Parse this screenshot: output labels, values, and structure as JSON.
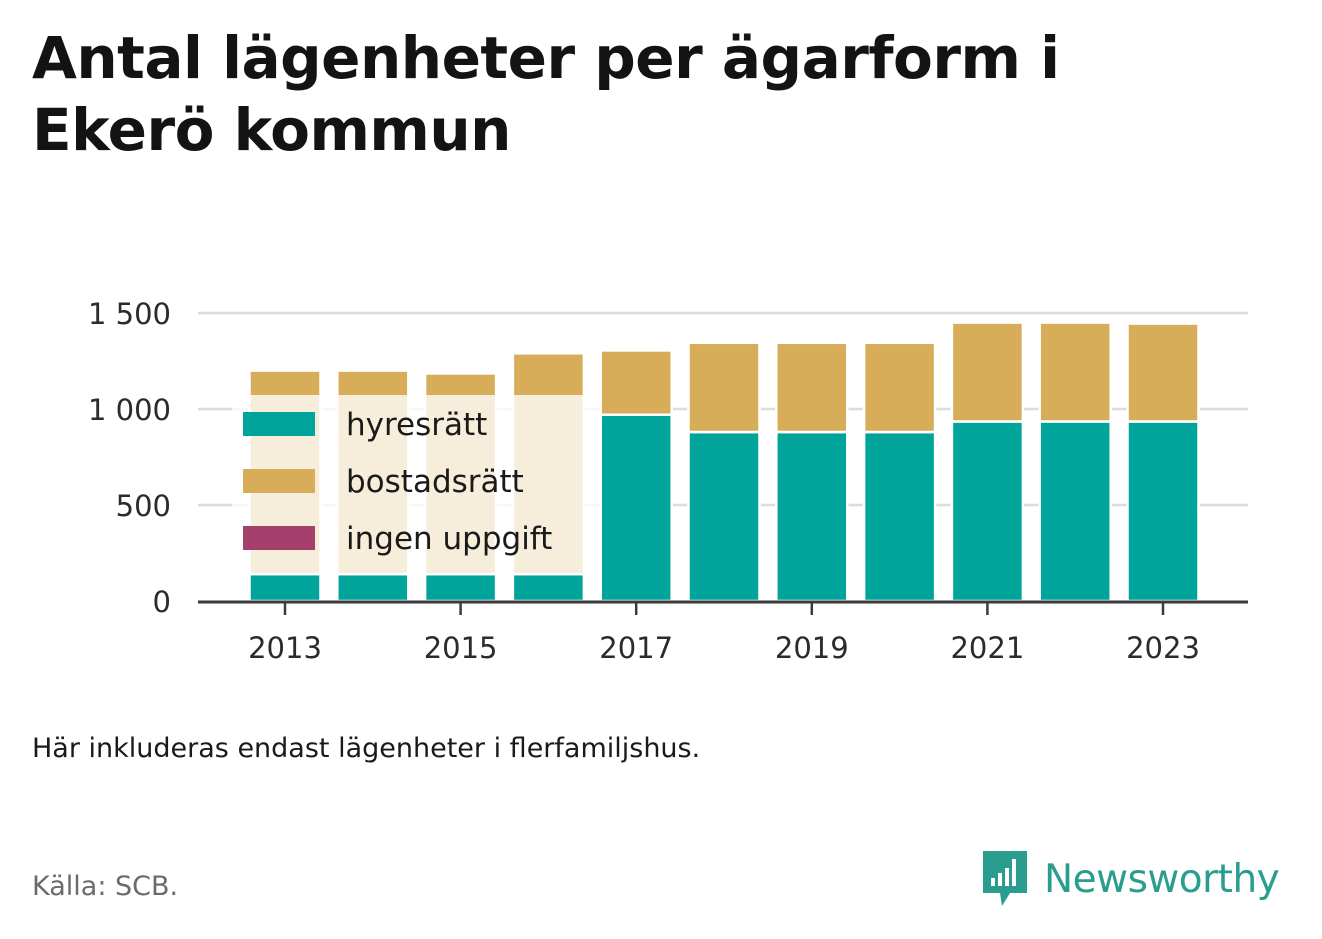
{
  "title": "Antal lägenheter per ägarform i Ekerö kommun",
  "note": "Här inkluderas endast lägenheter i flerfamiljshus.",
  "source": "Källa: SCB.",
  "brand": {
    "name": "Newsworthy",
    "icon": "newsworthy-logo-icon",
    "color": "#2a9d8f"
  },
  "chart_data": {
    "type": "bar",
    "stacked": true,
    "categories": [
      "2013",
      "2014",
      "2015",
      "2016",
      "2017",
      "2018",
      "2019",
      "2020",
      "2021",
      "2022",
      "2023"
    ],
    "x_tick_labels": [
      "2013",
      "2015",
      "2017",
      "2019",
      "2021",
      "2023"
    ],
    "series": [
      {
        "name": "hyresrätt",
        "color": "#00a49a",
        "values": [
          140,
          140,
          140,
          140,
          970,
          880,
          880,
          880,
          935,
          935,
          935
        ]
      },
      {
        "name": "bostadsrätt",
        "color": "#d8ad5a",
        "values": [
          1060,
          1060,
          1045,
          1150,
          335,
          465,
          465,
          465,
          515,
          515,
          510
        ]
      },
      {
        "name": "ingen uppgift",
        "color": "#a4406b",
        "values": [
          0,
          0,
          0,
          0,
          0,
          0,
          0,
          0,
          0,
          0,
          0
        ]
      }
    ],
    "y_ticks": [
      0,
      500,
      1000,
      1500
    ],
    "y_tick_labels": [
      "0",
      "500",
      "1 000",
      "1 500"
    ],
    "ylim": [
      0,
      1500
    ],
    "grid": true,
    "legend_position": "top-left"
  }
}
